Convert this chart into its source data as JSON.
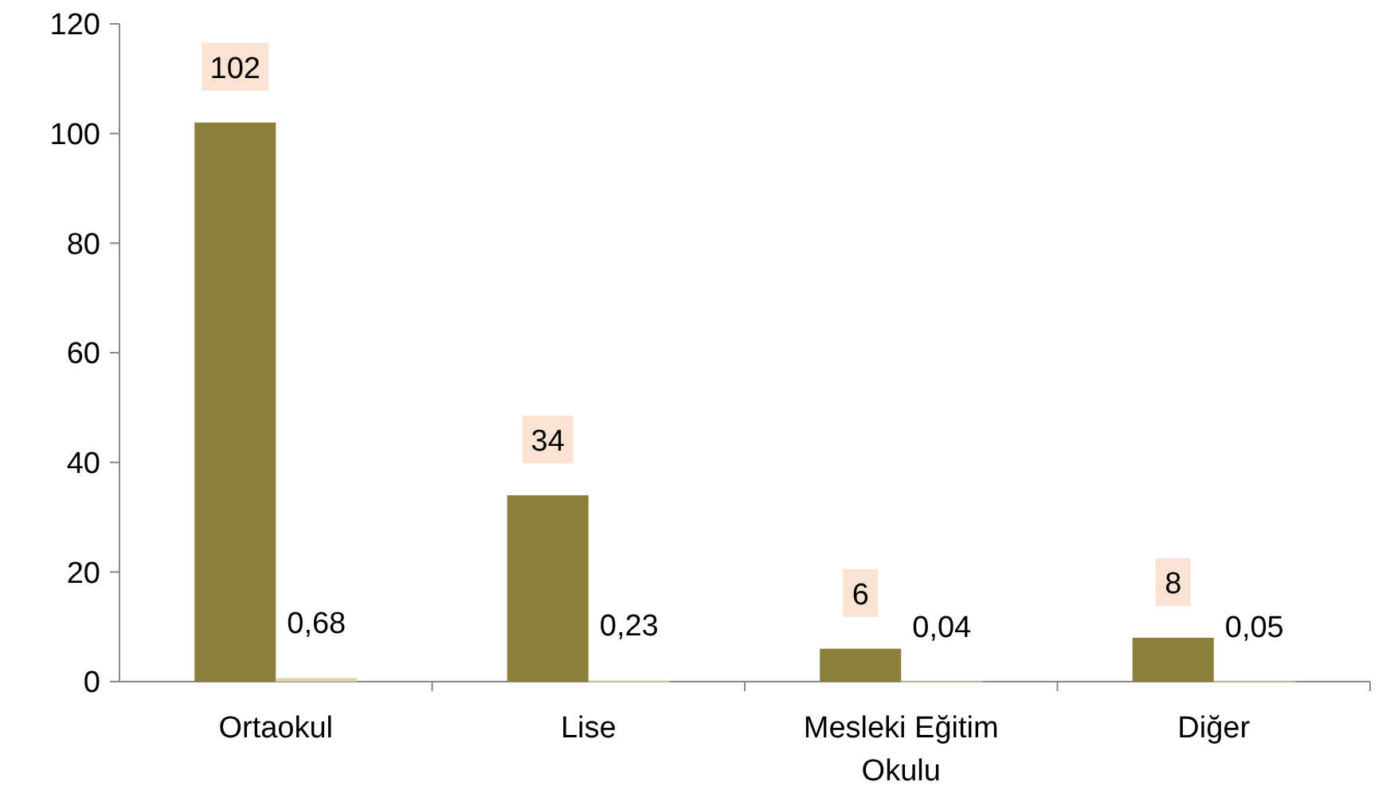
{
  "chart_data": {
    "type": "bar",
    "categories": [
      "Ortaokul",
      "Lise",
      "Mesleki Eğitim Okulu",
      "Diğer"
    ],
    "series": [
      {
        "color": "#8c7f3c",
        "values": [
          102,
          34,
          6,
          8
        ],
        "value_labels": [
          "102",
          "34",
          "6",
          "8"
        ]
      },
      {
        "color": "#ddd6ad",
        "values": [
          0.68,
          0.23,
          0.04,
          0.05
        ],
        "value_labels": [
          "0,68",
          "0,23",
          "0,04",
          "0,05"
        ]
      }
    ],
    "ylim": [
      0,
      120
    ],
    "yticks": [
      0,
      20,
      40,
      60,
      80,
      100,
      120
    ],
    "grid": false
  }
}
